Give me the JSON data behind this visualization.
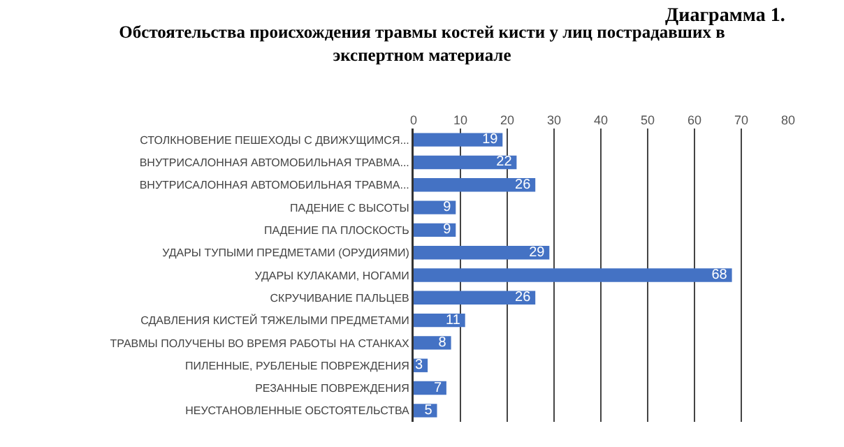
{
  "chart_data": {
    "type": "bar",
    "orientation": "horizontal",
    "title": "Обстоятельства происхождения травмы костей кисти у лиц пострадавших в экспертном материале",
    "annotations": [
      "Диаграмма 1."
    ],
    "categories": [
      "СТОЛКНОВЕНИЕ ПЕШЕХОДЫ С ДВИЖУЩИМСЯ...",
      "ВНУТРИСАЛОННАЯ АВТОМОБИЛЬНАЯ ТРАВМА...",
      "ВНУТРИСАЛОННАЯ АВТОМОБИЛЬНАЯ ТРАВМА...",
      "ПАДЕНИЕ С ВЫСОТЫ",
      "ПАДЕНИЕ ПА ПЛОСКОСТЬ",
      "УДАРЫ ТУПЫМИ ПРЕДМЕТАМИ (ОРУДИЯМИ)",
      "УДАРЫ КУЛАКАМИ, НОГАМИ",
      "СКРУЧИВАНИЕ ПАЛЬЦЕВ",
      "СДАВЛЕНИЯ КИСТЕЙ ТЯЖЕЛЫМИ ПРЕДМЕТАМИ",
      "ТРАВМЫ ПОЛУЧЕНЫ ВО ВРЕМЯ РАБОТЫ НА СТАНКАХ",
      "ПИЛЕННЫЕ, РУБЛЕНЫЕ ПОВРЕЖДЕНИЯ",
      "РЕЗАННЫЕ ПОВРЕЖДЕНИЯ",
      "НЕУСТАНОВЛЕННЫЕ ОБСТОЯТЕЛЬСТВА"
    ],
    "values": [
      19,
      22,
      26,
      9,
      9,
      29,
      68,
      26,
      11,
      8,
      3,
      7,
      5
    ],
    "color": "#4472c4",
    "data_labels": true,
    "xlim": [
      0,
      80
    ],
    "xticks": [
      0,
      10,
      20,
      30,
      40,
      50,
      60,
      70,
      80
    ],
    "grid": "x"
  }
}
